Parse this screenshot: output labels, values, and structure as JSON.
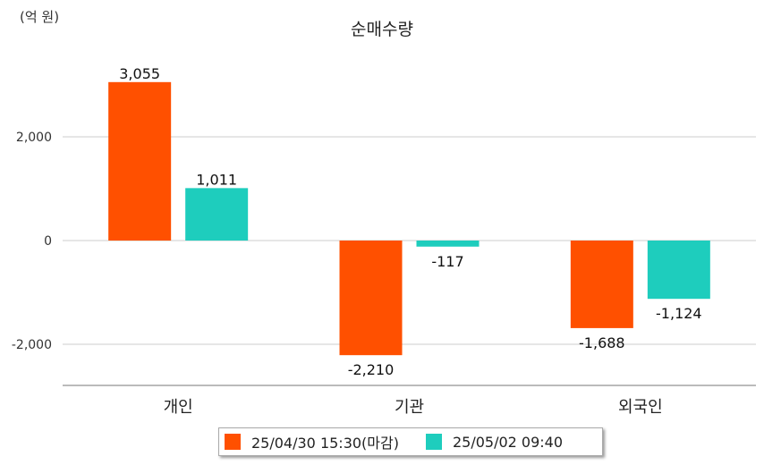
{
  "unit_label": "(억 원)",
  "chart_data": {
    "type": "bar",
    "title": "순매수량",
    "xlabel": "",
    "ylabel": "",
    "ylim": [
      -2800,
      3300
    ],
    "y_ticks": [
      -2000,
      0,
      2000
    ],
    "y_tick_labels": [
      "-2,000",
      "0",
      "2,000"
    ],
    "grid": true,
    "legend_position": "bottom",
    "categories": [
      "개인",
      "기관",
      "외국인"
    ],
    "series": [
      {
        "name": "25/04/30 15:30(마감)",
        "color": "#ff5000",
        "values": [
          3055,
          -2210,
          -1688
        ],
        "labels": [
          "3,055",
          "-2,210",
          "-1,688"
        ]
      },
      {
        "name": "25/05/02 09:40",
        "color": "#1ecdbd",
        "values": [
          1011,
          -117,
          -1124
        ],
        "labels": [
          "1,011",
          "-117",
          "-1,124"
        ]
      }
    ]
  }
}
